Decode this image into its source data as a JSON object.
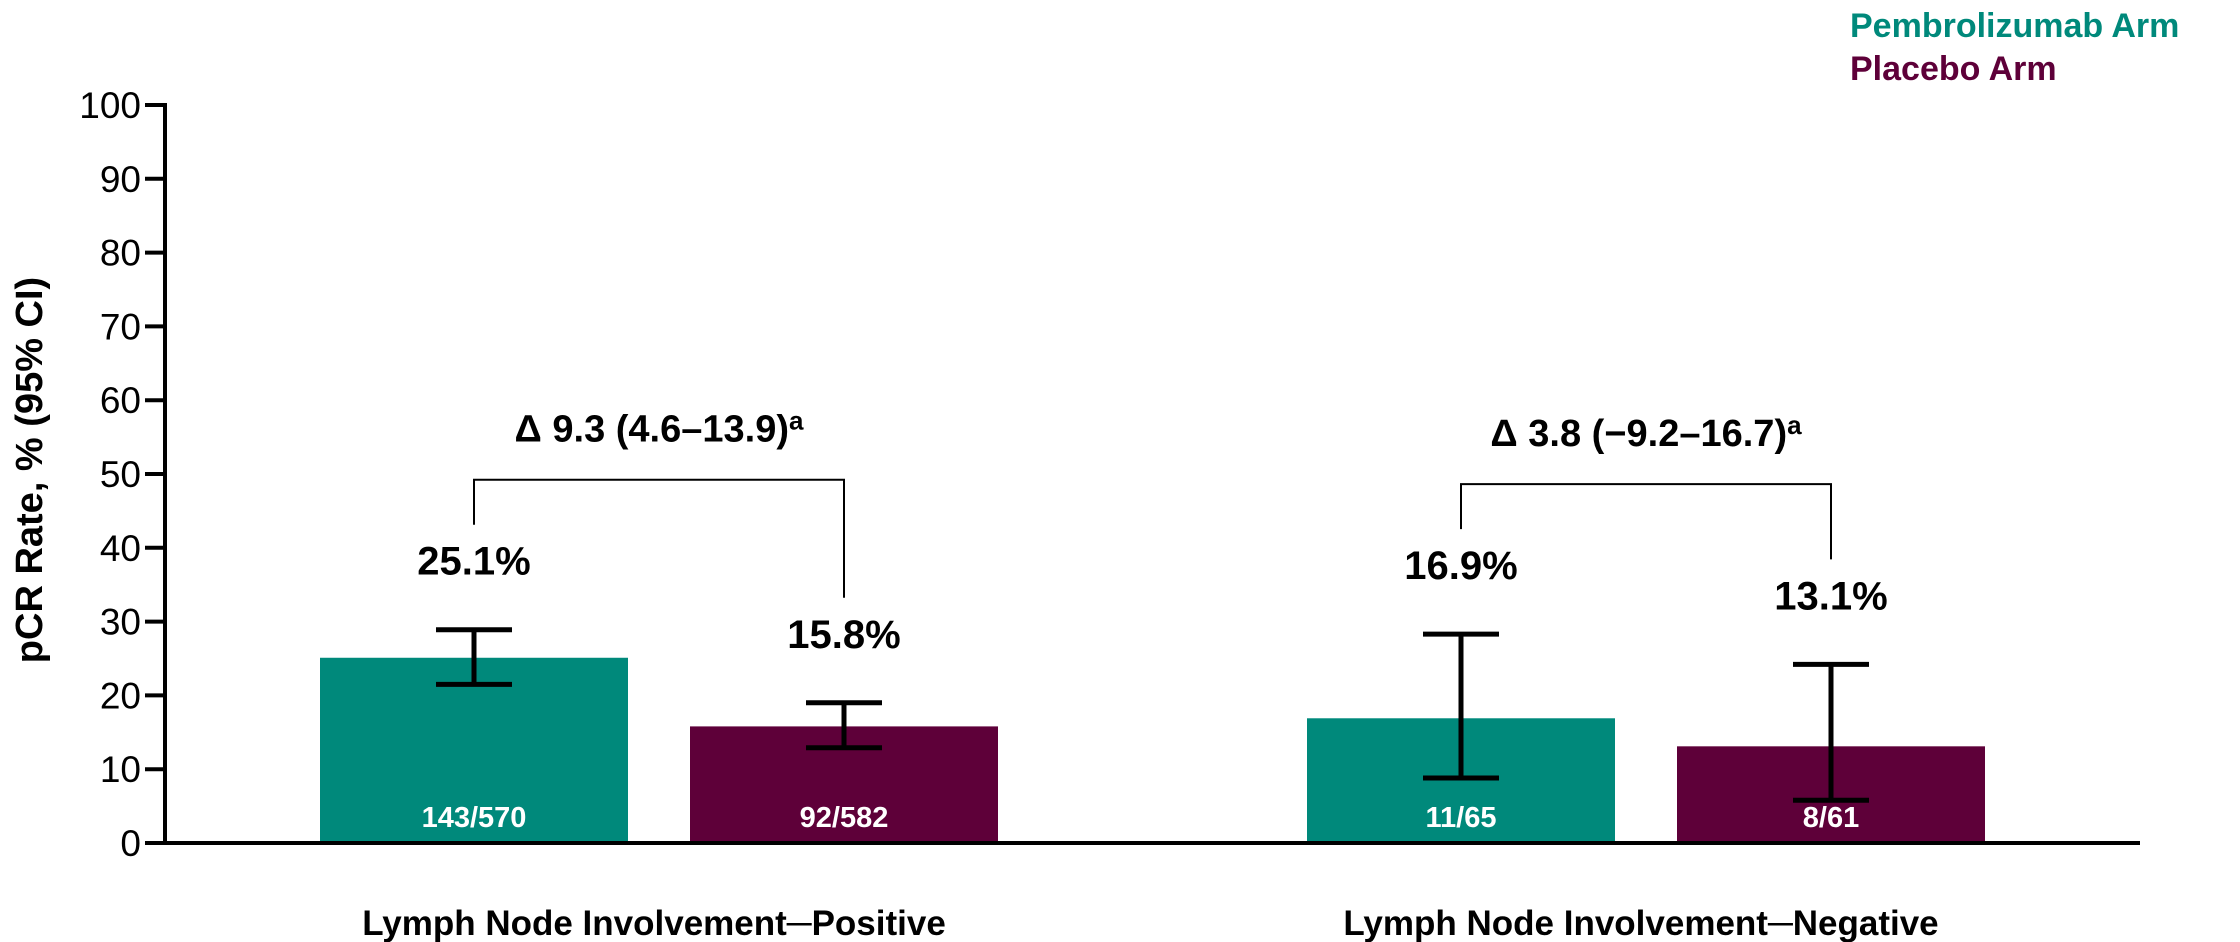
{
  "chart_data": {
    "type": "bar",
    "title": "",
    "xlabel": "",
    "ylabel": "pCR Rate, % (95% CI)",
    "ylim": [
      0,
      100
    ],
    "yticks": [
      0,
      10,
      20,
      30,
      40,
      50,
      60,
      70,
      80,
      90,
      100
    ],
    "grid": false,
    "legend_position": "top-right",
    "categories": [
      "Lymph Node Involvement─Positive",
      "Lymph Node Involvement─Negative"
    ],
    "series": [
      {
        "name": "Pembrolizumab Arm",
        "color": "#00897b",
        "values": [
          25.1,
          16.9
        ],
        "ci_low": [
          21.5,
          8.8
        ],
        "ci_high": [
          28.9,
          28.3
        ],
        "value_labels": [
          "25.1%",
          "16.9%"
        ],
        "count_labels": [
          "143/570",
          "11/65"
        ]
      },
      {
        "name": "Placebo Arm",
        "color": "#5e0039",
        "values": [
          15.8,
          13.1
        ],
        "ci_low": [
          12.9,
          5.8
        ],
        "ci_high": [
          19.0,
          24.2
        ],
        "value_labels": [
          "15.8%",
          "13.1%"
        ],
        "count_labels": [
          "92/582",
          "8/61"
        ]
      }
    ],
    "annotations": [
      {
        "category_index": 0,
        "text": "Δ 9.3 (4.6–13.9)",
        "superscript": "a"
      },
      {
        "category_index": 1,
        "text": "Δ 3.8 (−9.2–16.7)",
        "superscript": "a"
      }
    ]
  }
}
